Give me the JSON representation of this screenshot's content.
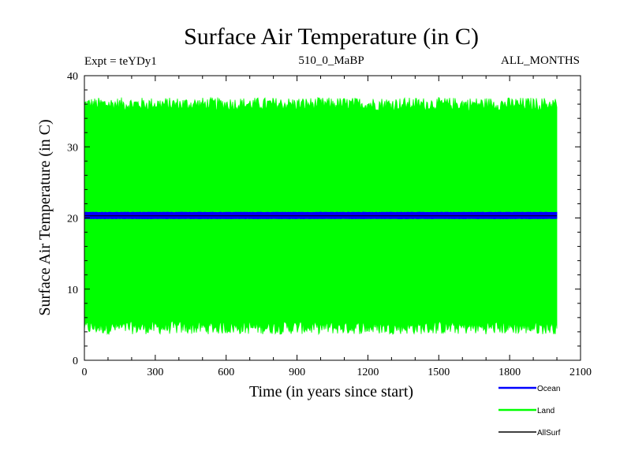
{
  "chart_data": {
    "type": "line",
    "title": "Surface Air Temperature (in C)",
    "subtitle_left": "Expt = teYDy1",
    "subtitle_center": "510_0_MaBP",
    "subtitle_right": "ALL_MONTHS",
    "xlabel": "Time (in years since start)",
    "ylabel": "Surface Air Temperature (in C)",
    "xlim": [
      0,
      2100
    ],
    "ylim": [
      0,
      40
    ],
    "xticks": [
      0,
      300,
      600,
      900,
      1200,
      1500,
      1800,
      2100
    ],
    "yticks": [
      0,
      10,
      20,
      30,
      40
    ],
    "xtick_labels": [
      "0",
      "300",
      "600",
      "900",
      "1200",
      "1500",
      "1800",
      "2100"
    ],
    "ytick_labels": [
      "0",
      "10",
      "20",
      "30",
      "40"
    ],
    "legend_position": "bottom-right, below plot",
    "series": [
      {
        "name": "Ocean",
        "color": "#0000ff",
        "x_range": [
          0,
          2000
        ],
        "seasonal_min": 19.9,
        "seasonal_max": 20.8,
        "description_values": {
          "mean": 20.4
        }
      },
      {
        "name": "Land",
        "color": "#00ff00",
        "x_range": [
          0,
          2000
        ],
        "seasonal_min": 4.6,
        "seasonal_max": 36.0,
        "description_values": {
          "mean": 20.3
        }
      },
      {
        "name": "AllSurf",
        "color": "#000000",
        "x_range": [
          0,
          2000
        ],
        "seasonal_min": 20.3,
        "seasonal_max": 20.3,
        "description_values": {
          "mean": 20.3
        }
      }
    ]
  }
}
